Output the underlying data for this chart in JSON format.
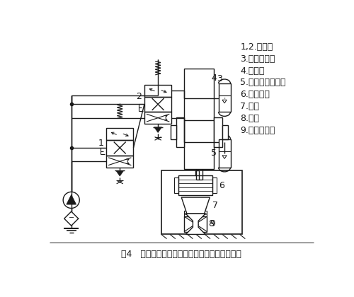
{
  "title": "图4   谐振式电液伺服疲劳试验机液压系统原理图",
  "legend": [
    "1,2.伺服阀",
    "3.激振液压缸",
    "4.蓄能器",
    "5.平均负载液压缸",
    "6.谐振砝码",
    "7.夹头",
    "8.试件",
    "9.负荷传感器"
  ],
  "bg_color": "#ffffff",
  "line_color": "#1a1a1a",
  "font_size": 8,
  "title_font_size": 9
}
